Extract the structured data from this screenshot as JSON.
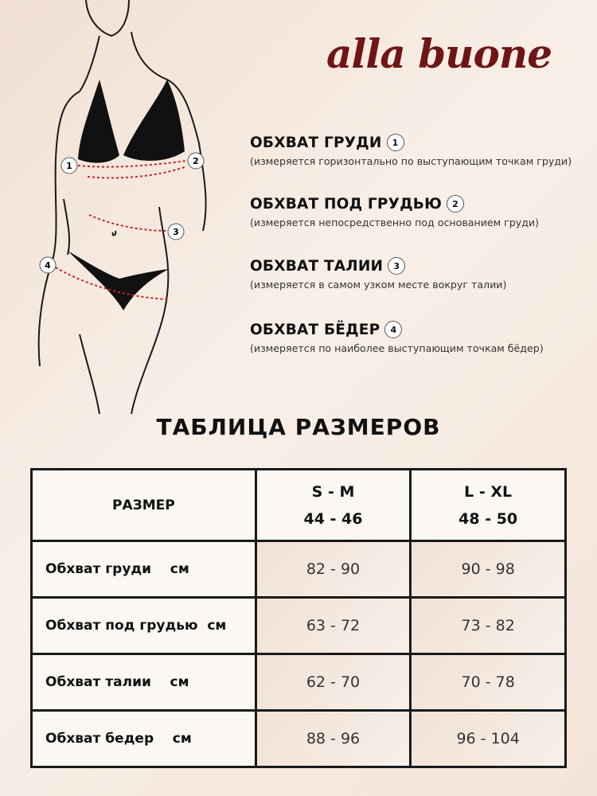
{
  "brand": {
    "logo_text": "alla buone",
    "color": "#6e1518"
  },
  "measurements": [
    {
      "number": "1",
      "title": "ОБХВАТ ГРУДИ",
      "description": "(измеряется горизонтально по выступающим точкам груди)"
    },
    {
      "number": "2",
      "title": "ОБХВАТ ПОД ГРУДЬЮ",
      "description": "(измеряется непосредственно под основанием груди)"
    },
    {
      "number": "3",
      "title": "ОБХВАТ ТАЛИИ",
      "description": "(измеряется в самом узком месте вокруг талии)"
    },
    {
      "number": "4",
      "title": "ОБХВАТ БЁДЕР",
      "description": "(измеряется по наиболее выступающим точкам бёдер)"
    }
  ],
  "table": {
    "title": "ТАБЛИЦА РАЗМЕРОВ",
    "header": {
      "label": "РАЗМЕР",
      "columns": [
        {
          "size": "S - M",
          "ru": "44 - 46"
        },
        {
          "size": "L - XL",
          "ru": "48 - 50"
        }
      ]
    },
    "rows": [
      {
        "label": "Обхват груди    см",
        "values": [
          "82 - 90",
          "90 - 98"
        ]
      },
      {
        "label": "Обхват под грудью  см",
        "values": [
          "63 - 72",
          "73 - 82"
        ]
      },
      {
        "label": "Обхват талии    см",
        "values": [
          "62 - 70",
          "70 - 78"
        ]
      },
      {
        "label": "Обхват бедер    см",
        "values": [
          "88 - 96",
          "96 - 104"
        ]
      }
    ]
  },
  "colors": {
    "measure_line": "#c0282d",
    "outline": "#1a1a1a"
  }
}
